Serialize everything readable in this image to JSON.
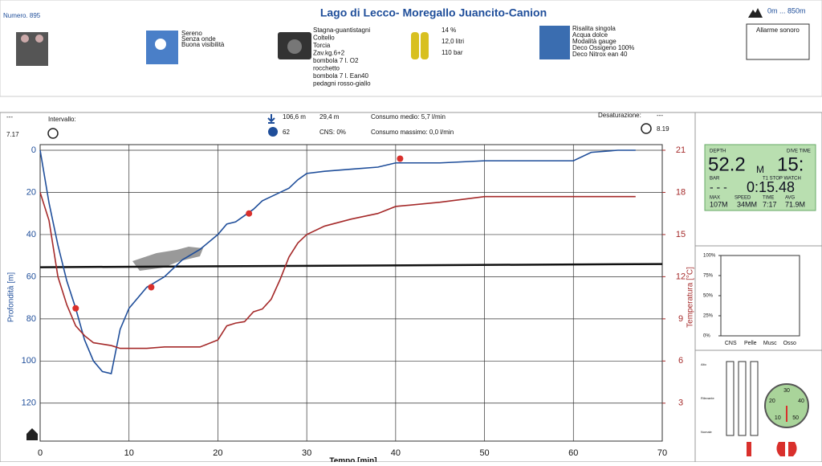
{
  "header": {
    "number": "Numero. 895",
    "title": "Lago di Lecco- Moregallo  Juancito-Canion",
    "altitude": "0m ... 850m",
    "alarm": "Allarme sonoro"
  },
  "conditions": [
    "Sereno",
    "Senza onde",
    "Buona visibilità"
  ],
  "equipment": [
    "Stagna-guantistagni",
    "Coltello",
    "Torcia",
    "Zav.kg.6+2",
    "bombola 7 l. O2",
    "rocchetto",
    "bombola 7 l. Ean40",
    "pedagni rosso-giallo"
  ],
  "gas": [
    "14 %",
    "12,0 litri",
    "110 bar"
  ],
  "notes": [
    "Risalita singola",
    "Acqua dolce",
    "Modalità gauge",
    "Deco Ossigeno 100%",
    "Deco Nitrox ean 40"
  ],
  "stats": {
    "start_dash": "---",
    "start_time": "7.17",
    "interval": "Intervallo:",
    "max_depth": "106,6 m",
    "avg_depth": "29,4 m",
    "duration": "62",
    "cns": "CNS: 0%",
    "avg_consumption": "Consumo medio: 5,7 l/min",
    "max_consumption": "Consumo massimo: 0,0 l/min",
    "desaturation": "Desaturazione:",
    "desat_value": "---",
    "end_time": "8.19"
  },
  "computer": {
    "depth_label": "DEPTH",
    "time_label": "DIVE TIME",
    "depth": "52.2",
    "depth_unit": "M",
    "time": "15:",
    "bar_label": "BAR",
    "stop_label": "T1 STOP WATCH",
    "bar": "- - -",
    "stopwatch": "0:15.48",
    "max_label": "MAX",
    "speed_label": "SPEED",
    "time2_label": "TIME",
    "avg_label": "AVG",
    "max": "107M",
    "speed": "34MM",
    "time2": "7:17",
    "avg": "71.9M"
  },
  "saturation_levels": [
    "Alto",
    "Rilevante",
    "Nomale"
  ],
  "gauge": {
    "ticks": [
      10,
      20,
      30,
      40,
      50
    ]
  },
  "chart_data": [
    {
      "type": "line",
      "x_label": "Tempo [min]",
      "y_label": "Profondità [m]",
      "y2_label": "Temperatura [°C]",
      "x": [
        0,
        1,
        2,
        3,
        4,
        5,
        6,
        7,
        8,
        9,
        10,
        12,
        14,
        16,
        18,
        20,
        21,
        22,
        23,
        24,
        25,
        26,
        27,
        28,
        29,
        30,
        32,
        35,
        38,
        40,
        45,
        50,
        55,
        60,
        62,
        65,
        67
      ],
      "series": [
        {
          "name": "Profondità",
          "color": "#1f4e9a",
          "values": [
            0,
            25,
            45,
            62,
            75,
            90,
            100,
            105,
            106,
            85,
            75,
            65,
            60,
            52,
            47,
            40,
            35,
            34,
            31,
            28,
            24,
            22,
            20,
            18,
            14,
            11,
            10,
            9,
            8,
            6,
            6,
            5,
            5,
            5,
            1,
            0,
            0
          ]
        },
        {
          "name": "Temperatura",
          "color": "#a52a2a",
          "axis": "y2",
          "values": [
            18,
            16,
            12,
            10,
            8.5,
            7.8,
            7.3,
            7.2,
            7.1,
            6.9,
            6.9,
            6.9,
            7,
            7,
            7,
            7.5,
            8.5,
            8.7,
            8.8,
            9.5,
            9.7,
            10.4,
            11.8,
            13.4,
            14.4,
            15,
            15.6,
            16.1,
            16.5,
            17,
            17.3,
            17.7,
            17.7,
            17.7,
            17.7,
            17.7,
            17.7
          ]
        }
      ],
      "markers": {
        "color": "#d9302c",
        "x": [
          4,
          12.5,
          23.5,
          40.5
        ],
        "values": [
          75,
          65,
          30,
          4
        ]
      },
      "reference_depth": 55.5,
      "xlim": [
        0,
        70
      ],
      "xticks": [
        0,
        10,
        20,
        30,
        40,
        50,
        60,
        70
      ],
      "ylim": [
        0,
        138
      ],
      "yticks": [
        0,
        20,
        40,
        60,
        80,
        100,
        120
      ],
      "y2lim": [
        21,
        0.3
      ],
      "y2ticks": [
        21,
        18,
        15,
        12,
        9,
        6,
        3
      ],
      "grid": true
    },
    {
      "type": "bar",
      "categories": [
        "CNS",
        "Pelle",
        "Musc",
        "Osso"
      ],
      "values": [
        0,
        0,
        0,
        0
      ],
      "color": "#1f4e9a",
      "ylim": [
        0,
        100
      ],
      "yticks": [
        {
          "value": 0,
          "label": "0%"
        },
        {
          "value": 25,
          "label": "25%"
        },
        {
          "value": 50,
          "label": "50%"
        },
        {
          "value": 75,
          "label": "75%"
        },
        {
          "value": 100,
          "label": "100%"
        }
      ]
    }
  ]
}
